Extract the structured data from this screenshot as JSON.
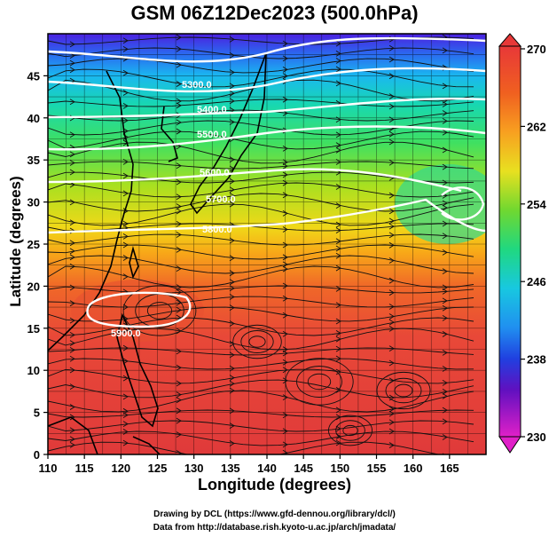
{
  "title": "GSM 06Z12Dec2023 (500.0hPa)",
  "x_axis": {
    "label": "Longitude (degrees)",
    "ticks": [
      "110",
      "115",
      "120",
      "125",
      "130",
      "135",
      "140",
      "145",
      "150",
      "155",
      "160",
      "165"
    ]
  },
  "y_axis": {
    "label": "Latitude  (degrees)",
    "ticks": [
      "0",
      "5",
      "10",
      "15",
      "20",
      "25",
      "30",
      "35",
      "40",
      "45"
    ]
  },
  "colorbar": {
    "ticks": [
      "230",
      "238",
      "246",
      "254",
      "262",
      "270"
    ]
  },
  "contour_labels": [
    "5300.0",
    "5400.0",
    "5500.0",
    "5600.0",
    "5700.0",
    "5800.0",
    "5900.0"
  ],
  "footer": {
    "line1": "Drawing by DCL (https://www.gfd-dennou.org/library/dcl/)",
    "line2": "Data from http://database.rish.kyoto-u.ac.jp/arch/jmadata/"
  }
}
